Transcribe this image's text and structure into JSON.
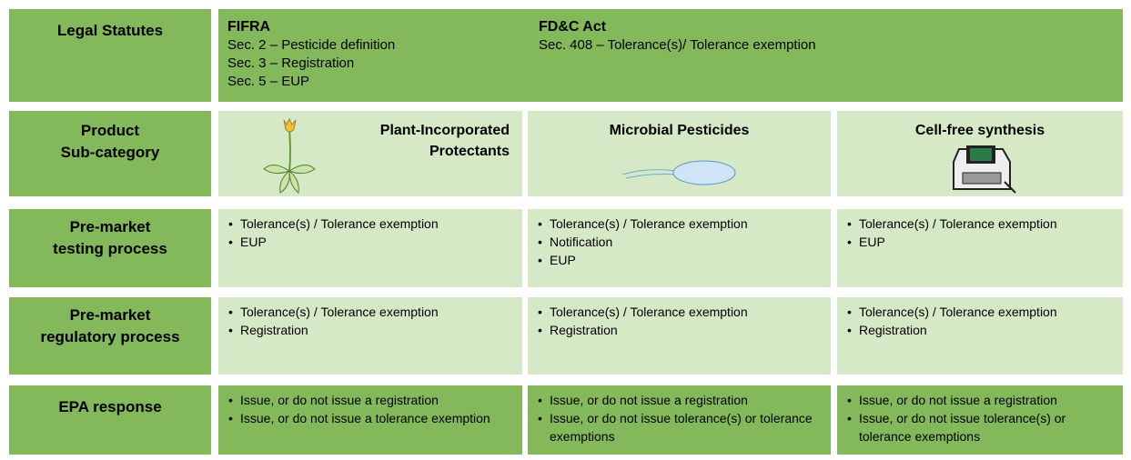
{
  "row_labels": [
    [
      "Legal Statutes"
    ],
    [
      "Product",
      "Sub-category"
    ],
    [
      "Pre-market",
      "testing process"
    ],
    [
      "Pre-market",
      "regulatory process"
    ],
    [
      "EPA response"
    ]
  ],
  "statutes": [
    {
      "title": "FIFRA",
      "items": [
        "Sec. 2 – Pesticide definition",
        "Sec. 3 – Registration",
        "Sec. 5 – EUP"
      ]
    },
    {
      "title": "FD&C Act",
      "items": [
        "Sec. 408 – Tolerance(s)/ Tolerance exemption"
      ]
    }
  ],
  "subcategories": [
    "Plant-Incorporated Protectants",
    "Microbial Pesticides",
    "Cell-free synthesis"
  ],
  "testing": [
    [
      "Tolerance(s) / Tolerance exemption",
      "EUP"
    ],
    [
      "Tolerance(s) / Tolerance exemption",
      "Notification",
      "EUP"
    ],
    [
      "Tolerance(s) / Tolerance exemption",
      "EUP"
    ]
  ],
  "regulatory": [
    [
      "Tolerance(s) / Tolerance exemption",
      "Registration"
    ],
    [
      "Tolerance(s) / Tolerance exemption",
      "Registration"
    ],
    [
      "Tolerance(s) / Tolerance exemption",
      "Registration"
    ]
  ],
  "epa_response": [
    [
      "Issue, or do not issue a registration",
      "Issue, or do not issue a tolerance exemption"
    ],
    [
      "Issue, or do not issue a registration",
      "Issue, or do not issue tolerance(s) or tolerance exemptions"
    ],
    [
      "Issue, or do not issue a registration",
      "Issue, or do not issue tolerance(s) or tolerance exemptions"
    ]
  ]
}
